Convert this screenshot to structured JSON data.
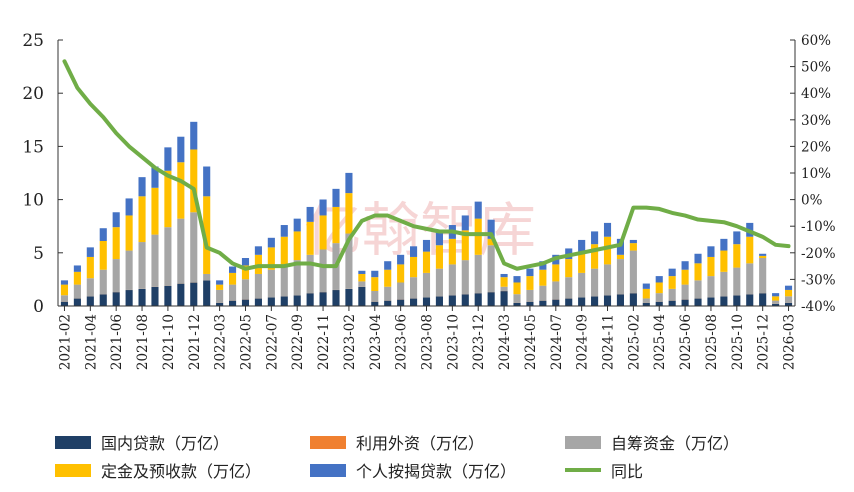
{
  "chart_data": {
    "type": "bar",
    "stacked": true,
    "watermark": "亿翰智库",
    "categories": [
      "2021-02",
      "2021-03",
      "2021-04",
      "2021-05",
      "2021-06",
      "2021-07",
      "2021-08",
      "2021-09",
      "2021-10",
      "2021-11",
      "2021-12",
      "2022-02",
      "2022-03",
      "2022-04",
      "2022-05",
      "2022-06",
      "2022-07",
      "2022-08",
      "2022-09",
      "2022-10",
      "2022-11",
      "2022-12",
      "2023-02",
      "2023-03",
      "2023-04",
      "2023-05",
      "2023-06",
      "2023-07",
      "2023-08",
      "2023-09",
      "2023-10",
      "2023-11",
      "2023-12",
      "2024-02",
      "2024-03",
      "2024-04",
      "2024-05",
      "2024-06",
      "2024-07",
      "2024-08",
      "2024-09",
      "2024-10",
      "2024-11",
      "2024-12",
      "2025-02",
      "2025-03",
      "2025-04",
      "2025-05",
      "2025-06",
      "2025-07",
      "2025-08",
      "2025-09",
      "2025-10",
      "2025-11",
      "2025-12",
      "2026-02",
      "2026-03"
    ],
    "x_tick_labels": [
      "2021-02",
      "2021-04",
      "2021-06",
      "2021-08",
      "2021-10",
      "2021-12",
      "2022-03",
      "2022-05",
      "2022-07",
      "2022-09",
      "2022-11",
      "2023-02",
      "2023-04",
      "2023-06",
      "2023-08",
      "2023-10",
      "2023-12",
      "2024-03",
      "2024-05",
      "2024-07",
      "2024-09",
      "2024-11",
      "2025-02",
      "2025-04",
      "2025-06",
      "2025-08",
      "2025-10",
      "2025-12",
      "2026-03"
    ],
    "series": [
      {
        "name": "国内贷款（万亿）",
        "color": "#1f3f66",
        "axis": "left",
        "values": [
          0.4,
          0.7,
          0.9,
          1.1,
          1.3,
          1.5,
          1.6,
          1.8,
          1.9,
          2.1,
          2.2,
          2.4,
          0.3,
          0.5,
          0.6,
          0.7,
          0.8,
          0.9,
          1.0,
          1.2,
          1.3,
          1.5,
          1.6,
          1.8,
          0.4,
          0.5,
          0.6,
          0.7,
          0.8,
          0.9,
          1.0,
          1.1,
          1.2,
          1.3,
          1.4,
          0.3,
          0.4,
          0.5,
          0.6,
          0.7,
          0.8,
          0.9,
          1.0,
          1.1,
          1.2,
          0.3,
          0.4,
          0.5,
          0.6,
          0.7,
          0.8,
          0.9,
          1.0,
          1.1,
          1.2,
          0.2,
          0.3
        ]
      },
      {
        "name": "利用外资（万亿）",
        "color": "#f08030",
        "axis": "left",
        "values": [
          0.01,
          0.01,
          0.01,
          0.01,
          0.01,
          0.01,
          0.01,
          0.01,
          0.01,
          0.01,
          0.01,
          0.01,
          0.01,
          0.01,
          0.01,
          0.01,
          0.01,
          0.01,
          0.01,
          0.01,
          0.01,
          0.01,
          0.01,
          0.01,
          0.01,
          0.01,
          0.01,
          0.01,
          0.01,
          0.01,
          0.01,
          0.01,
          0.01,
          0.01,
          0.01,
          0.01,
          0.01,
          0.01,
          0.01,
          0.01,
          0.01,
          0.01,
          0.01,
          0.01,
          0.01,
          0.01,
          0.01,
          0.01,
          0.01,
          0.01,
          0.01,
          0.01,
          0.01,
          0.01,
          0.01,
          0.01,
          0.01
        ]
      },
      {
        "name": "自筹资金（万亿）",
        "color": "#a6a6a6",
        "axis": "left",
        "values": [
          0.6,
          1.3,
          1.7,
          2.3,
          3.1,
          3.7,
          4.4,
          4.9,
          5.5,
          6.1,
          6.6,
          0.6,
          1.2,
          1.5,
          1.9,
          2.3,
          2.6,
          3.0,
          3.3,
          3.6,
          4.0,
          4.4,
          5.2,
          0.5,
          1.0,
          1.3,
          1.6,
          2.0,
          2.3,
          2.6,
          2.9,
          3.2,
          3.6,
          4.4,
          0.4,
          0.8,
          1.1,
          1.4,
          1.7,
          2.0,
          2.3,
          2.6,
          2.9,
          3.3,
          4.0,
          0.4,
          0.8,
          1.1,
          1.4,
          1.7,
          2.0,
          2.3,
          2.6,
          2.9,
          3.3,
          0.3,
          0.6
        ]
      },
      {
        "name": "定金及预收款（万亿）",
        "color": "#ffc000",
        "axis": "left",
        "values": [
          1.0,
          1.2,
          2.0,
          2.7,
          3.0,
          3.3,
          4.3,
          4.4,
          5.3,
          5.3,
          5.9,
          7.3,
          0.5,
          1.1,
          1.3,
          1.8,
          2.1,
          2.6,
          2.7,
          3.1,
          3.2,
          3.4,
          3.8,
          0.7,
          1.3,
          1.6,
          1.7,
          1.9,
          2.0,
          2.2,
          2.4,
          2.8,
          3.4,
          0.6,
          0.9,
          1.1,
          1.3,
          1.5,
          1.6,
          1.7,
          2.0,
          2.3,
          2.6,
          0.4,
          0.7,
          0.9,
          1.0,
          1.2,
          1.4,
          1.6,
          1.8,
          2.0,
          2.2,
          2.5,
          0.2,
          0.4,
          0.6
        ]
      },
      {
        "name": "个人按揭贷款（万亿）",
        "color": "#4472c4",
        "axis": "left",
        "values": [
          0.4,
          0.6,
          0.9,
          1.2,
          1.4,
          1.6,
          1.8,
          2.0,
          2.2,
          2.4,
          2.6,
          2.8,
          0.4,
          0.6,
          0.7,
          0.8,
          0.9,
          1.1,
          1.2,
          1.4,
          1.5,
          1.7,
          1.9,
          0.3,
          0.6,
          0.8,
          0.9,
          1.0,
          1.1,
          1.2,
          1.3,
          1.4,
          1.6,
          1.8,
          0.3,
          0.6,
          0.7,
          0.8,
          0.9,
          1.0,
          1.1,
          1.2,
          1.3,
          1.5,
          0.3,
          0.5,
          0.6,
          0.7,
          0.8,
          0.9,
          1.0,
          1.1,
          1.2,
          1.3,
          0.2,
          0.3,
          0.4
        ]
      },
      {
        "name": "同比",
        "color": "#70ad47",
        "axis": "right",
        "type": "line",
        "values": [
          52,
          42,
          36,
          31,
          25,
          20,
          16,
          12,
          9,
          7,
          4,
          -18,
          -20,
          -24,
          -26,
          -25,
          -25,
          -25,
          -24,
          -24,
          -25,
          -25,
          -15,
          -8,
          -6,
          -6,
          -8,
          -10,
          -11,
          -12,
          -12,
          -13,
          -13,
          -13,
          -24,
          -26,
          -25,
          -24,
          -22,
          -21,
          -20,
          -19,
          -18,
          -17,
          -3,
          -3,
          -3.5,
          -5,
          -6,
          -7.5,
          -8,
          -8.5,
          -10,
          -12,
          -14,
          -17,
          -17.5
        ]
      }
    ],
    "ylim": [
      0,
      25
    ],
    "yticks": [
      0,
      5,
      10,
      15,
      20,
      25
    ],
    "y2lim": [
      -40,
      60
    ],
    "y2ticks": [
      "-40%",
      "-30%",
      "-20%",
      "-10%",
      "0%",
      "10%",
      "20%",
      "30%",
      "40%",
      "50%",
      "60%"
    ],
    "grid": false,
    "legend": "bottom"
  }
}
